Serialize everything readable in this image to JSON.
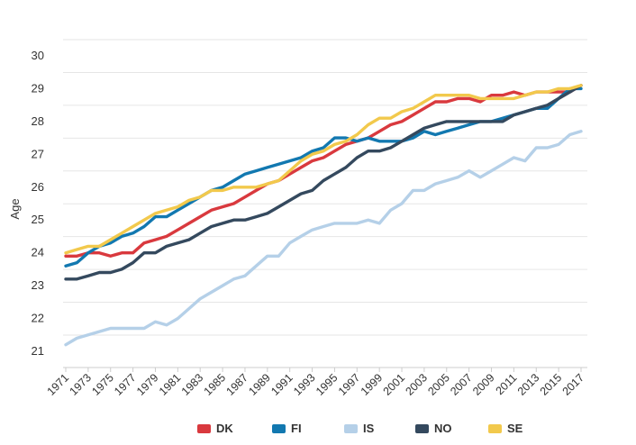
{
  "chart_data": {
    "type": "line",
    "ylabel": "Age",
    "xlabel": "",
    "ylim": [
      21,
      30
    ],
    "yticks": [
      21,
      22,
      23,
      24,
      25,
      26,
      27,
      28,
      29,
      30
    ],
    "x": [
      1971,
      1972,
      1973,
      1974,
      1975,
      1976,
      1977,
      1978,
      1979,
      1980,
      1981,
      1982,
      1983,
      1984,
      1985,
      1986,
      1987,
      1988,
      1989,
      1990,
      1991,
      1992,
      1993,
      1994,
      1995,
      1996,
      1997,
      1998,
      1999,
      2000,
      2001,
      2002,
      2003,
      2004,
      2005,
      2006,
      2007,
      2008,
      2009,
      2010,
      2011,
      2012,
      2013,
      2014,
      2015,
      2016,
      2017
    ],
    "xtick_labels": [
      "1971",
      "1973",
      "1975",
      "1977",
      "1979",
      "1981",
      "1983",
      "1985",
      "1987",
      "1989",
      "1991",
      "1993",
      "1995",
      "1997",
      "1999",
      "2001",
      "2003",
      "2005",
      "2007",
      "2009",
      "2011",
      "2013",
      "2015",
      "2017"
    ],
    "grid": true,
    "legend_position": "bottom",
    "series": [
      {
        "name": "DK",
        "color": "#d9393e",
        "values": [
          23.9,
          23.9,
          24.0,
          24.0,
          23.9,
          24.0,
          24.0,
          24.3,
          24.4,
          24.5,
          24.7,
          24.9,
          25.1,
          25.3,
          25.4,
          25.5,
          25.7,
          25.9,
          26.1,
          26.2,
          26.4,
          26.6,
          26.8,
          26.9,
          27.1,
          27.3,
          27.4,
          27.5,
          27.7,
          27.9,
          28.0,
          28.2,
          28.4,
          28.6,
          28.6,
          28.7,
          28.7,
          28.6,
          28.8,
          28.8,
          28.9,
          28.8,
          28.9,
          28.9,
          28.9,
          28.9,
          29.1
        ]
      },
      {
        "name": "FI",
        "color": "#1278b0",
        "values": [
          23.6,
          23.7,
          24.0,
          24.2,
          24.3,
          24.5,
          24.6,
          24.8,
          25.1,
          25.1,
          25.3,
          25.5,
          25.7,
          25.9,
          26.0,
          26.2,
          26.4,
          26.5,
          26.6,
          26.7,
          26.8,
          26.9,
          27.1,
          27.2,
          27.5,
          27.5,
          27.4,
          27.5,
          27.4,
          27.4,
          27.4,
          27.5,
          27.7,
          27.6,
          27.7,
          27.8,
          27.9,
          28.0,
          28.0,
          28.1,
          28.2,
          28.3,
          28.4,
          28.4,
          28.7,
          29.0,
          29.0
        ]
      },
      {
        "name": "IS",
        "color": "#b5d0e8",
        "values": [
          21.2,
          21.4,
          21.5,
          21.6,
          21.7,
          21.7,
          21.7,
          21.7,
          21.9,
          21.8,
          22.0,
          22.3,
          22.6,
          22.8,
          23.0,
          23.2,
          23.3,
          23.6,
          23.9,
          23.9,
          24.3,
          24.5,
          24.7,
          24.8,
          24.9,
          24.9,
          24.9,
          25.0,
          24.9,
          25.3,
          25.5,
          25.9,
          25.9,
          26.1,
          26.2,
          26.3,
          26.5,
          26.3,
          26.5,
          26.7,
          26.9,
          26.8,
          27.2,
          27.2,
          27.3,
          27.6,
          27.7
        ]
      },
      {
        "name": "NO",
        "color": "#34495e",
        "values": [
          23.2,
          23.2,
          23.3,
          23.4,
          23.4,
          23.5,
          23.7,
          24.0,
          24.0,
          24.2,
          24.3,
          24.4,
          24.6,
          24.8,
          24.9,
          25.0,
          25.0,
          25.1,
          25.2,
          25.4,
          25.6,
          25.8,
          25.9,
          26.2,
          26.4,
          26.6,
          26.9,
          27.1,
          27.1,
          27.2,
          27.4,
          27.6,
          27.8,
          27.9,
          28.0,
          28.0,
          28.0,
          28.0,
          28.0,
          28.0,
          28.2,
          28.3,
          28.4,
          28.5,
          28.7,
          28.9,
          29.1
        ]
      },
      {
        "name": "SE",
        "color": "#f2c94c",
        "values": [
          24.0,
          24.1,
          24.2,
          24.2,
          24.4,
          24.6,
          24.8,
          25.0,
          25.2,
          25.3,
          25.4,
          25.6,
          25.7,
          25.9,
          25.9,
          26.0,
          26.0,
          26.0,
          26.1,
          26.2,
          26.5,
          26.8,
          27.0,
          27.1,
          27.3,
          27.4,
          27.6,
          27.9,
          28.1,
          28.1,
          28.3,
          28.4,
          28.6,
          28.8,
          28.8,
          28.8,
          28.8,
          28.7,
          28.7,
          28.7,
          28.7,
          28.8,
          28.9,
          28.9,
          29.0,
          29.0,
          29.1
        ]
      }
    ]
  }
}
